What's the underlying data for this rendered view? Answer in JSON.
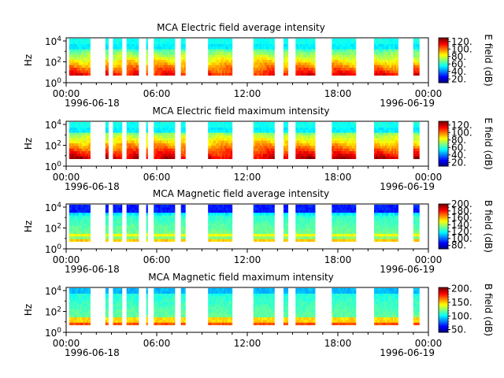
{
  "chart_data": [
    {
      "type": "heatmap",
      "title": "MCA  Electric field average intensity",
      "ylabel": "Hz",
      "y_scale": "log",
      "ylim": [
        1,
        20000
      ],
      "y_ticks": [
        "10^0",
        "10^2",
        "10^4"
      ],
      "x_ticks": [
        "00:00",
        "06:00",
        "12:00",
        "18:00",
        "00:00"
      ],
      "x_dates": [
        "1996-06-18",
        "1996-06-19"
      ],
      "colorbar": {
        "label": "E field (dB)",
        "ticks": [
          "20.",
          "40.",
          "60.",
          "80.",
          "100.",
          "120."
        ],
        "range": [
          10,
          130
        ]
      },
      "data_blocks_hours": [
        [
          0.2,
          1.6
        ],
        [
          2.6,
          2.8
        ],
        [
          3.1,
          3.7
        ],
        [
          4.0,
          4.8
        ],
        [
          5.3,
          5.4
        ],
        [
          5.8,
          7.2
        ],
        [
          7.6,
          7.9
        ],
        [
          9.4,
          11.0
        ],
        [
          12.4,
          13.8
        ],
        [
          14.4,
          14.7
        ],
        [
          15.2,
          16.5
        ],
        [
          17.6,
          19.2
        ],
        [
          20.4,
          22.0
        ],
        [
          23.0,
          23.4
        ]
      ]
    },
    {
      "type": "heatmap",
      "title": "MCA  Electric field maximum intensity",
      "ylabel": "Hz",
      "y_scale": "log",
      "ylim": [
        1,
        20000
      ],
      "y_ticks": [
        "10^0",
        "10^2",
        "10^4"
      ],
      "x_ticks": [
        "00:00",
        "06:00",
        "12:00",
        "18:00",
        "00:00"
      ],
      "x_dates": [
        "1996-06-18",
        "1996-06-19"
      ],
      "colorbar": {
        "label": "E field (dB)",
        "ticks": [
          "20.",
          "40.",
          "60.",
          "80.",
          "100.",
          "120."
        ],
        "range": [
          10,
          130
        ]
      },
      "data_blocks_hours": [
        [
          0.2,
          1.6
        ],
        [
          2.6,
          2.8
        ],
        [
          3.1,
          3.7
        ],
        [
          4.0,
          4.8
        ],
        [
          5.3,
          5.4
        ],
        [
          5.8,
          7.2
        ],
        [
          7.6,
          7.9
        ],
        [
          9.4,
          11.0
        ],
        [
          12.4,
          13.8
        ],
        [
          14.4,
          14.7
        ],
        [
          15.2,
          16.5
        ],
        [
          17.6,
          19.2
        ],
        [
          20.4,
          22.0
        ],
        [
          23.0,
          23.4
        ]
      ]
    },
    {
      "type": "heatmap",
      "title": "MCA  Magnetic field average intensity",
      "ylabel": "Hz",
      "y_scale": "log",
      "ylim": [
        1,
        20000
      ],
      "y_ticks": [
        "10^0",
        "10^2",
        "10^4"
      ],
      "x_ticks": [
        "00:00",
        "06:00",
        "12:00",
        "18:00",
        "00:00"
      ],
      "x_dates": [
        "1996-06-18",
        "1996-06-19"
      ],
      "colorbar": {
        "label": "B field (dB)",
        "ticks": [
          "80.",
          "100.",
          "120.",
          "140.",
          "160.",
          "180.",
          "200."
        ],
        "range": [
          70,
          200
        ]
      },
      "data_blocks_hours": [
        [
          0.2,
          1.6
        ],
        [
          2.6,
          2.8
        ],
        [
          3.1,
          3.7
        ],
        [
          4.0,
          4.8
        ],
        [
          5.3,
          5.4
        ],
        [
          5.8,
          7.2
        ],
        [
          7.6,
          7.9
        ],
        [
          9.4,
          11.0
        ],
        [
          12.4,
          13.8
        ],
        [
          14.4,
          14.7
        ],
        [
          15.2,
          16.5
        ],
        [
          17.6,
          19.2
        ],
        [
          20.4,
          22.0
        ],
        [
          23.0,
          23.4
        ]
      ]
    },
    {
      "type": "heatmap",
      "title": "MCA  Magnetic field maximum intensity",
      "ylabel": "Hz",
      "y_scale": "log",
      "ylim": [
        1,
        20000
      ],
      "y_ticks": [
        "10^0",
        "10^2",
        "10^4"
      ],
      "x_ticks": [
        "00:00",
        "06:00",
        "12:00",
        "18:00",
        "00:00"
      ],
      "x_dates": [
        "1996-06-18",
        "1996-06-19"
      ],
      "colorbar": {
        "label": "B field (dB)",
        "ticks": [
          "50.",
          "100.",
          "150.",
          "200."
        ],
        "range": [
          40,
          205
        ]
      },
      "data_blocks_hours": [
        [
          0.2,
          1.6
        ],
        [
          2.6,
          2.8
        ],
        [
          3.1,
          3.7
        ],
        [
          4.0,
          4.8
        ],
        [
          5.3,
          5.4
        ],
        [
          5.8,
          7.2
        ],
        [
          7.6,
          7.9
        ],
        [
          9.4,
          11.0
        ],
        [
          12.4,
          13.8
        ],
        [
          14.4,
          14.7
        ],
        [
          15.2,
          16.5
        ],
        [
          17.6,
          19.2
        ],
        [
          20.4,
          22.0
        ],
        [
          23.0,
          23.4
        ]
      ]
    }
  ]
}
